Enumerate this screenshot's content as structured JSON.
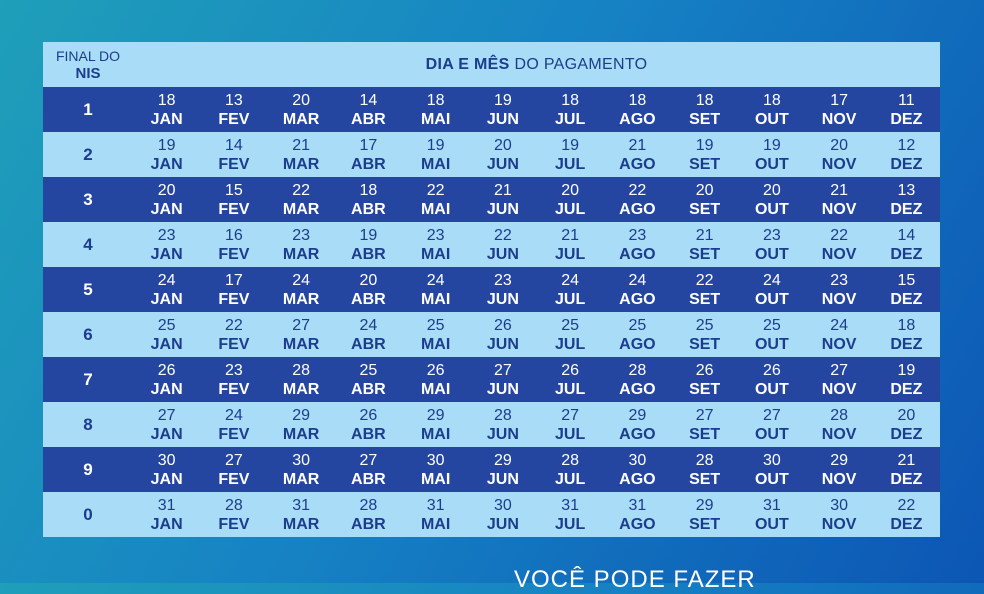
{
  "header": {
    "nis_line1": "FINAL DO",
    "nis_line2": "NIS",
    "title_bold": "DIA E MÊS",
    "title_rest": "DO PAGAMENTO"
  },
  "months": [
    "JAN",
    "FEV",
    "MAR",
    "ABR",
    "MAI",
    "JUN",
    "JUL",
    "AGO",
    "SET",
    "OUT",
    "NOV",
    "DEZ"
  ],
  "rows": [
    {
      "nis": "1",
      "days": [
        "18",
        "13",
        "20",
        "14",
        "18",
        "19",
        "18",
        "18",
        "18",
        "18",
        "17",
        "11"
      ]
    },
    {
      "nis": "2",
      "days": [
        "19",
        "14",
        "21",
        "17",
        "19",
        "20",
        "19",
        "21",
        "19",
        "19",
        "20",
        "12"
      ]
    },
    {
      "nis": "3",
      "days": [
        "20",
        "15",
        "22",
        "18",
        "22",
        "21",
        "20",
        "22",
        "20",
        "20",
        "21",
        "13"
      ]
    },
    {
      "nis": "4",
      "days": [
        "23",
        "16",
        "23",
        "19",
        "23",
        "22",
        "21",
        "23",
        "21",
        "23",
        "22",
        "14"
      ]
    },
    {
      "nis": "5",
      "days": [
        "24",
        "17",
        "24",
        "20",
        "24",
        "23",
        "24",
        "24",
        "22",
        "24",
        "23",
        "15"
      ]
    },
    {
      "nis": "6",
      "days": [
        "25",
        "22",
        "27",
        "24",
        "25",
        "26",
        "25",
        "25",
        "25",
        "25",
        "24",
        "18"
      ]
    },
    {
      "nis": "7",
      "days": [
        "26",
        "23",
        "28",
        "25",
        "26",
        "27",
        "26",
        "28",
        "26",
        "26",
        "27",
        "19"
      ]
    },
    {
      "nis": "8",
      "days": [
        "27",
        "24",
        "29",
        "26",
        "29",
        "28",
        "27",
        "29",
        "27",
        "27",
        "28",
        "20"
      ]
    },
    {
      "nis": "9",
      "days": [
        "30",
        "27",
        "30",
        "27",
        "30",
        "29",
        "28",
        "30",
        "28",
        "30",
        "29",
        "21"
      ]
    },
    {
      "nis": "0",
      "days": [
        "31",
        "28",
        "31",
        "28",
        "31",
        "30",
        "31",
        "31",
        "29",
        "31",
        "30",
        "22"
      ]
    }
  ],
  "footer": {
    "text": "VOCÊ PODE FAZER"
  },
  "colors": {
    "dark_row": "#2446a1",
    "light_row": "#a9dcf6",
    "text_dark": "#1c3c8e"
  }
}
